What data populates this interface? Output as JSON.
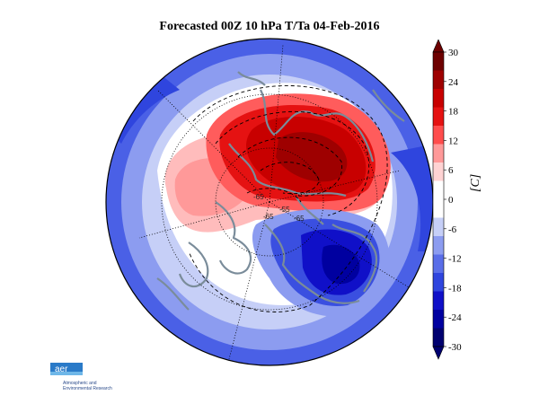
{
  "title": "Forecasted 00Z 10 hPa T/Ta 04-Feb-2016",
  "colorbar": {
    "unit_label": "[C]",
    "ticks": [
      "30",
      "24",
      "18",
      "12",
      "6",
      "0",
      "-6",
      "-12",
      "-18",
      "-24",
      "-30"
    ],
    "colors": [
      "#6e0000",
      "#9e0000",
      "#c80000",
      "#e51212",
      "#ff4d4d",
      "#ff9999",
      "#ffd3d3",
      "#ffffff",
      "#ffffff",
      "#c6cff7",
      "#8c9cf0",
      "#5a6ee8",
      "#2f45de",
      "#1010c8",
      "#0000a0",
      "#000070"
    ]
  },
  "contour_labels": [
    "-65",
    "-55",
    "-65",
    "-65"
  ],
  "logo": {
    "mark": "aer",
    "line1": "Atmospheric and",
    "line2": "Environmental Research"
  }
}
